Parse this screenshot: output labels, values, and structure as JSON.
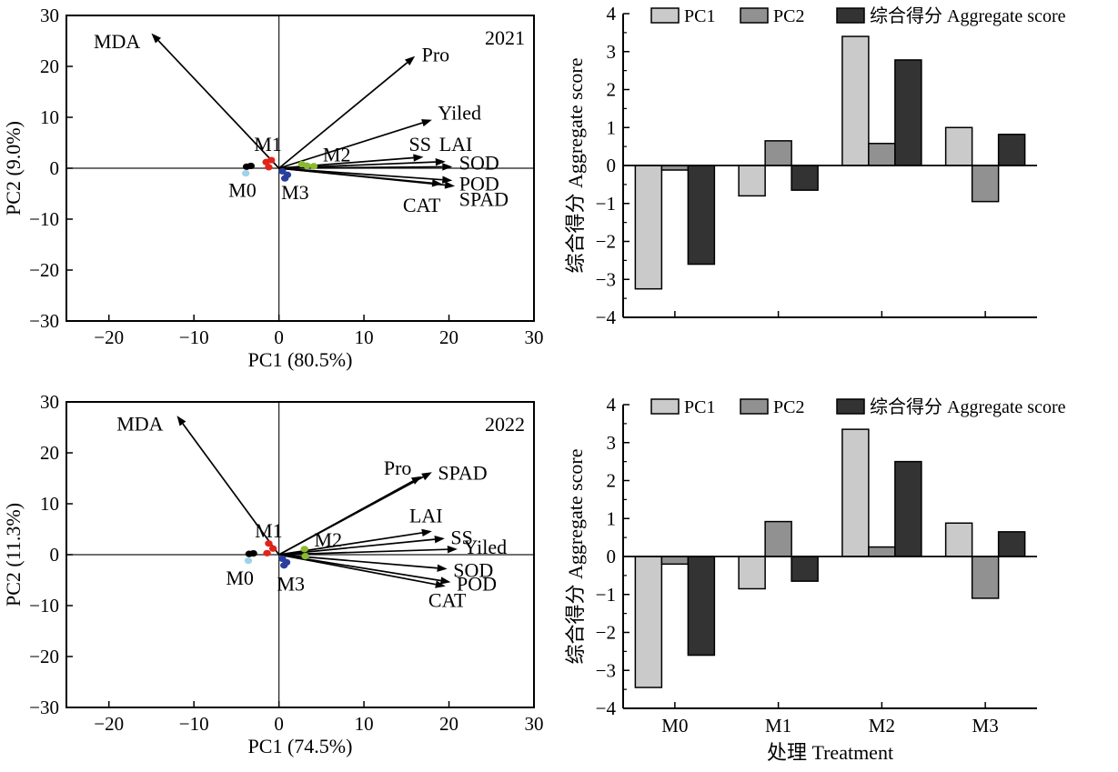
{
  "colors": {
    "axis": "#000000",
    "pc1_bar": "#cacaca",
    "pc2_bar": "#919191",
    "aggregate_bar": "#333333",
    "group_black": "#000000",
    "group_lightblue": "#9ed3e8",
    "group_red": "#e2231a",
    "group_green": "#8aba2f",
    "group_blue": "#2a3f9d"
  },
  "chart_data": [
    {
      "id": "pca-2021",
      "type": "scatter",
      "subtype": "pca-biplot",
      "year_label": "2021",
      "xlabel": "PC1 (80.5%)",
      "ylabel": "PC2 (9.0%)",
      "xlim": [
        -25,
        30
      ],
      "ylim": [
        -30,
        30
      ],
      "xticks": [
        -20,
        -10,
        0,
        10,
        20,
        30
      ],
      "yticks": [
        -30,
        -20,
        -10,
        0,
        10,
        20,
        30
      ],
      "grid": false,
      "arrows": [
        {
          "label": "MDA",
          "x": -15,
          "y": 26.5,
          "label_x": -16.3,
          "label_y": 24.8,
          "anchor": "end"
        },
        {
          "label": "Pro",
          "x": 16,
          "y": 22,
          "label_x": 16.8,
          "label_y": 22.2,
          "anchor": "start"
        },
        {
          "label": "Yiled",
          "x": 18,
          "y": 9.5,
          "label_x": 18.7,
          "label_y": 10.8,
          "anchor": "start"
        },
        {
          "label": "SS",
          "x": 17,
          "y": 2.2,
          "label_x": 16.6,
          "label_y": 4.6,
          "anchor": "middle"
        },
        {
          "label": "LAI",
          "x": 19.6,
          "y": 1.3,
          "label_x": 20.8,
          "label_y": 4.6,
          "anchor": "middle"
        },
        {
          "label": "SOD",
          "x": 20.4,
          "y": 0.3,
          "label_x": 21.2,
          "label_y": 1.0,
          "anchor": "start"
        },
        {
          "label": "POD",
          "x": 20.4,
          "y": -2.4,
          "label_x": 21.2,
          "label_y": -3.1,
          "anchor": "start"
        },
        {
          "label": "SPAD",
          "x": 20.7,
          "y": -3.5,
          "label_x": 21.2,
          "label_y": -6.2,
          "anchor": "start"
        },
        {
          "label": "CAT",
          "x": 19.2,
          "y": -3.1,
          "label_x": 16.8,
          "label_y": -7.3,
          "anchor": "middle"
        }
      ],
      "points": [
        {
          "group": "M0",
          "color": "#000000",
          "xy": [
            [
              -3.8,
              0.3
            ],
            [
              -3.3,
              0.45
            ]
          ]
        },
        {
          "group": "M0",
          "color": "#9ed3e8",
          "xy": [
            [
              -3.9,
              -1.0
            ]
          ]
        },
        {
          "group": "M1",
          "color": "#e2231a",
          "xy": [
            [
              -1.5,
              1.2
            ],
            [
              -0.9,
              1.6
            ],
            [
              -1.2,
              0.2
            ]
          ]
        },
        {
          "group": "M2",
          "color": "#8aba2f",
          "xy": [
            [
              2.7,
              0.8
            ],
            [
              3.3,
              0.5
            ],
            [
              4.1,
              0.4
            ]
          ]
        },
        {
          "group": "M3",
          "color": "#2a3f9d",
          "xy": [
            [
              0.4,
              -0.6
            ],
            [
              1.0,
              -1.3
            ],
            [
              0.7,
              -2.0
            ]
          ]
        }
      ],
      "group_labels": [
        {
          "label": "M1",
          "x": -1.3,
          "y": 4.6
        },
        {
          "label": "M0",
          "x": -4.3,
          "y": -4.4
        },
        {
          "label": "M3",
          "x": 1.9,
          "y": -4.8
        },
        {
          "label": "M2",
          "x": 6.8,
          "y": 2.6
        }
      ]
    },
    {
      "id": "pca-2022",
      "type": "scatter",
      "subtype": "pca-biplot",
      "year_label": "2022",
      "xlabel": "PC1 (74.5%)",
      "ylabel": "PC2 (11.3%)",
      "xlim": [
        -25,
        30
      ],
      "ylim": [
        -30,
        30
      ],
      "xticks": [
        -20,
        -10,
        0,
        10,
        20,
        30
      ],
      "yticks": [
        -30,
        -20,
        -10,
        0,
        10,
        20,
        30
      ],
      "grid": false,
      "arrows": [
        {
          "label": "MDA",
          "x": -12,
          "y": 27.3,
          "label_x": -13.6,
          "label_y": 25.6,
          "anchor": "end"
        },
        {
          "label": "Pro",
          "x": 16.8,
          "y": 15.4,
          "label_x": 15.6,
          "label_y": 17.0,
          "anchor": "end"
        },
        {
          "label": "SPAD",
          "x": 18,
          "y": 16.2,
          "label_x": 18.7,
          "label_y": 16.0,
          "anchor": "start"
        },
        {
          "label": "LAI",
          "x": 18,
          "y": 4.6,
          "label_x": 17.3,
          "label_y": 7.6,
          "anchor": "middle"
        },
        {
          "label": "SS",
          "x": 19.5,
          "y": 3.2,
          "label_x": 20.2,
          "label_y": 3.3,
          "anchor": "start"
        },
        {
          "label": "Yiled",
          "x": 21,
          "y": 1.1,
          "label_x": 21.7,
          "label_y": 1.4,
          "anchor": "start"
        },
        {
          "label": "SOD",
          "x": 19.8,
          "y": -2.8,
          "label_x": 20.5,
          "label_y": -3.1,
          "anchor": "start"
        },
        {
          "label": "POD",
          "x": 20.2,
          "y": -5.4,
          "label_x": 20.9,
          "label_y": -5.8,
          "anchor": "start"
        },
        {
          "label": "CAT",
          "x": 19.6,
          "y": -6.2,
          "label_x": 19.8,
          "label_y": -9.0,
          "anchor": "middle"
        }
      ],
      "points": [
        {
          "group": "M0",
          "color": "#000000",
          "xy": [
            [
              -3.5,
              0.15
            ],
            [
              -3.0,
              0.25
            ]
          ]
        },
        {
          "group": "M0",
          "color": "#9ed3e8",
          "xy": [
            [
              -3.6,
              -1.2
            ]
          ]
        },
        {
          "group": "M1",
          "color": "#e2231a",
          "xy": [
            [
              -1.2,
              2.2
            ],
            [
              -0.7,
              1.2
            ],
            [
              -1.4,
              0.3
            ]
          ]
        },
        {
          "group": "M2",
          "color": "#8aba2f",
          "xy": [
            [
              3.0,
              1.1
            ],
            [
              3.1,
              -0.3
            ]
          ]
        },
        {
          "group": "M3",
          "color": "#2a3f9d",
          "xy": [
            [
              0.4,
              -0.8
            ],
            [
              0.9,
              -1.5
            ],
            [
              0.6,
              -2.1
            ]
          ]
        }
      ],
      "group_labels": [
        {
          "label": "M1",
          "x": -1.2,
          "y": 4.6
        },
        {
          "label": "M0",
          "x": -4.6,
          "y": -4.6
        },
        {
          "label": "M3",
          "x": 1.4,
          "y": -5.8
        },
        {
          "label": "M2",
          "x": 5.8,
          "y": 2.9
        }
      ]
    },
    {
      "id": "bars-2021",
      "type": "bar",
      "categories": [
        "M0",
        "M1",
        "M2",
        "M3"
      ],
      "show_category_labels": false,
      "xlabel": "",
      "ylabel": "综合得分 Aggregate score",
      "ylim": [
        -4,
        4
      ],
      "yticks": [
        -4,
        -3,
        -2,
        -1,
        0,
        1,
        2,
        3,
        4
      ],
      "minor_tick_step": 0.5,
      "legend_position": "top",
      "series": [
        {
          "name": "PC1",
          "color": "#cacaca",
          "values": [
            -3.25,
            -0.8,
            3.4,
            1.0
          ]
        },
        {
          "name": "PC2",
          "color": "#919191",
          "values": [
            -0.12,
            0.65,
            0.58,
            -0.95
          ]
        },
        {
          "name": "综合得分 Aggregate score",
          "color": "#333333",
          "values": [
            -2.6,
            -0.65,
            2.78,
            0.82
          ]
        }
      ]
    },
    {
      "id": "bars-2022",
      "type": "bar",
      "categories": [
        "M0",
        "M1",
        "M2",
        "M3"
      ],
      "show_category_labels": true,
      "xlabel": "处理 Treatment",
      "ylabel": "综合得分 Aggregate score",
      "ylim": [
        -4,
        4
      ],
      "yticks": [
        -4,
        -3,
        -2,
        -1,
        0,
        1,
        2,
        3,
        4
      ],
      "minor_tick_step": 0.5,
      "legend_position": "top",
      "series": [
        {
          "name": "PC1",
          "color": "#cacaca",
          "values": [
            -3.45,
            -0.85,
            3.35,
            0.88
          ]
        },
        {
          "name": "PC2",
          "color": "#919191",
          "values": [
            -0.2,
            0.92,
            0.25,
            -1.1
          ]
        },
        {
          "name": "综合得分 Aggregate score",
          "color": "#333333",
          "values": [
            -2.6,
            -0.65,
            2.5,
            0.65
          ]
        }
      ]
    }
  ]
}
